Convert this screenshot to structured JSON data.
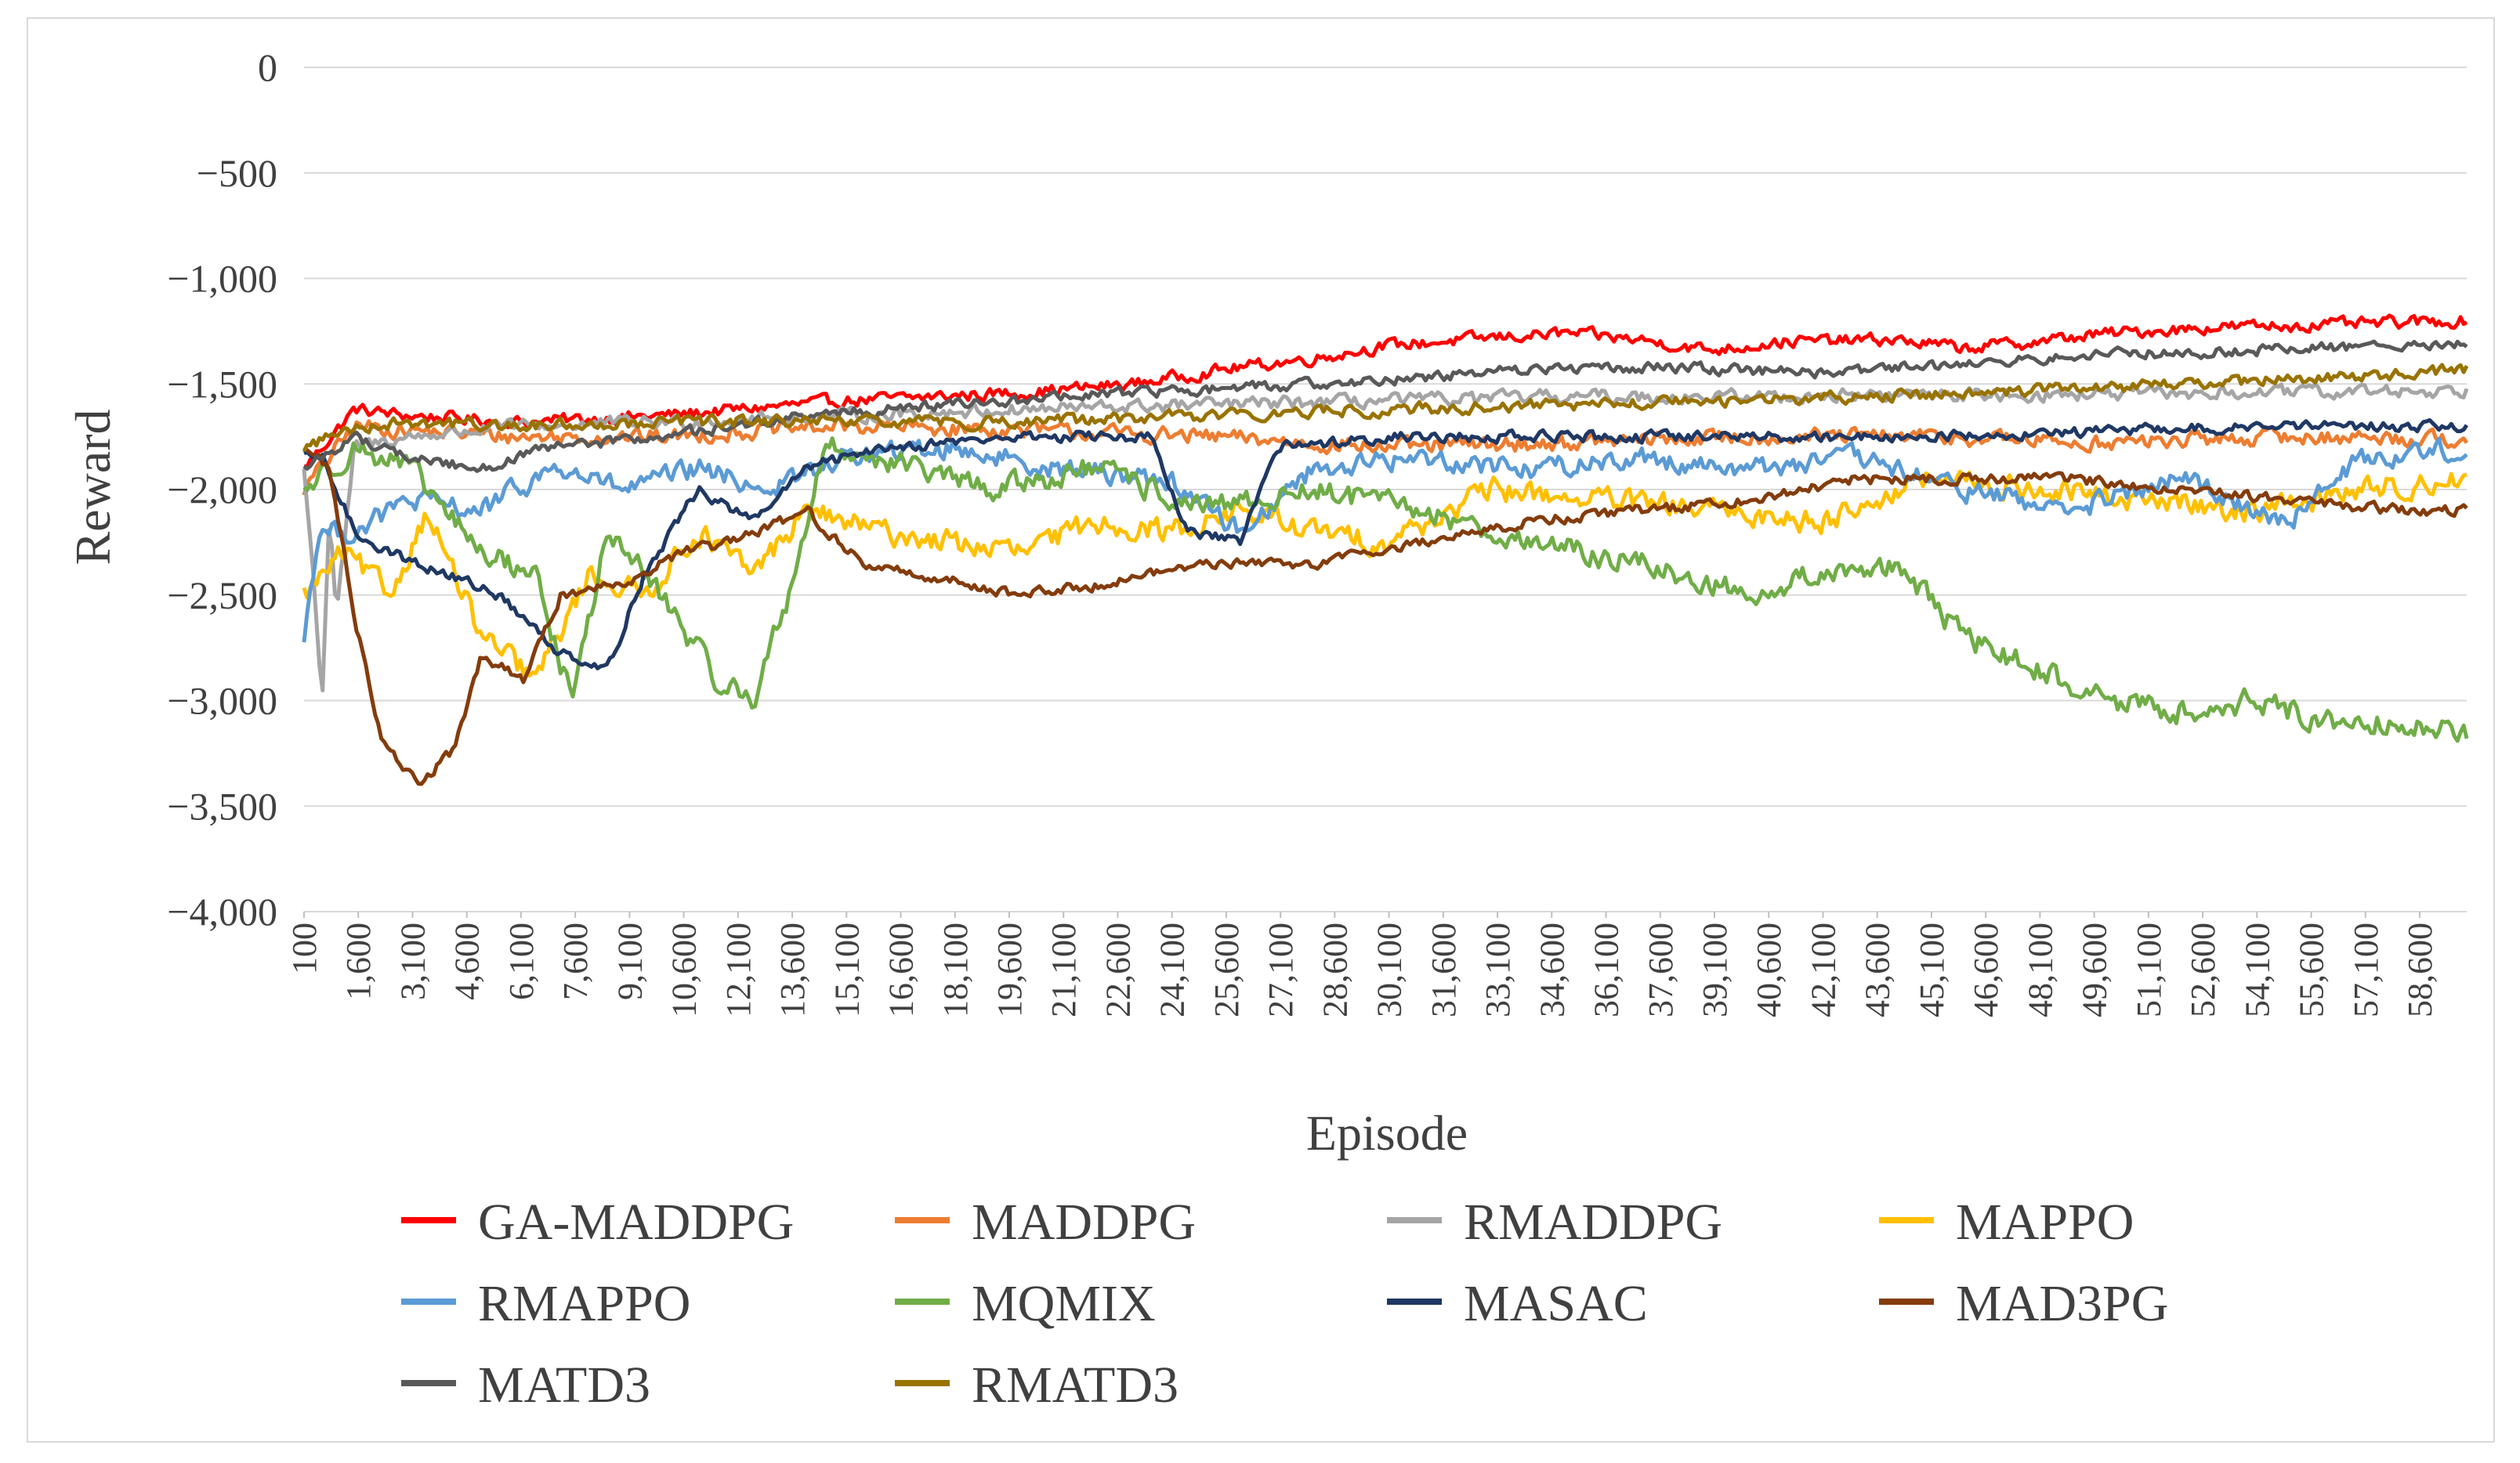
{
  "chart_data": {
    "type": "line",
    "title": "",
    "xlabel": "Episode",
    "ylabel": "Reward",
    "ylim": [
      -4000,
      0
    ],
    "y_ticks": [
      0,
      -500,
      -1000,
      -1500,
      -2000,
      -2500,
      -3000,
      -3500,
      -4000
    ],
    "y_tick_labels": [
      "0",
      "−500",
      "−1,000",
      "−1,500",
      "−2,000",
      "−2,500",
      "−3,000",
      "−3,500",
      "−4,000"
    ],
    "xlim": [
      100,
      59900
    ],
    "x_ticks": [
      100,
      1600,
      3100,
      4600,
      6100,
      7600,
      9100,
      10600,
      12100,
      13600,
      15100,
      16600,
      18100,
      19600,
      21100,
      22600,
      24100,
      25600,
      27100,
      28600,
      30100,
      31600,
      33100,
      34600,
      36100,
      37600,
      39100,
      40600,
      42100,
      43600,
      45100,
      46600,
      48100,
      49600,
      51100,
      52600,
      54100,
      55600,
      57100,
      58600
    ],
    "x_tick_labels": [
      "100",
      "1,600",
      "3,100",
      "4,600",
      "6,100",
      "7,600",
      "9,100",
      "10,600",
      "12,100",
      "13,600",
      "15,100",
      "16,600",
      "18,100",
      "19,600",
      "21,100",
      "22,600",
      "24,100",
      "25,600",
      "27,100",
      "28,600",
      "30,100",
      "31,600",
      "33,100",
      "34,600",
      "36,100",
      "37,600",
      "39,100",
      "40,600",
      "42,100",
      "43,600",
      "45,100",
      "46,600",
      "48,100",
      "49,600",
      "51,100",
      "52,600",
      "54,100",
      "55,600",
      "57,100",
      "58,600"
    ],
    "grid": true,
    "legend_position": "bottom",
    "series": [
      {
        "name": "GA-MADDPG",
        "color": "#ff0000",
        "noise": 45,
        "x": [
          100,
          1500,
          3000,
          6000,
          10000,
          15000,
          20000,
          23000,
          26000,
          28000,
          30000,
          33000,
          35000,
          37000,
          39000,
          41000,
          44000,
          46000,
          48000,
          50000,
          53000,
          56000,
          59900
        ],
        "values": [
          -1900,
          -1620,
          -1650,
          -1680,
          -1650,
          -1580,
          -1540,
          -1500,
          -1420,
          -1380,
          -1320,
          -1280,
          -1260,
          -1290,
          -1340,
          -1300,
          -1290,
          -1330,
          -1300,
          -1260,
          -1230,
          -1220,
          -1200
        ]
      },
      {
        "name": "MADDPG",
        "color": "#ed7d31",
        "noise": 60,
        "x": [
          100,
          1500,
          3000,
          6000,
          10000,
          15000,
          20000,
          25000,
          30000,
          35000,
          40000,
          45000,
          50000,
          55000,
          59900
        ],
        "values": [
          -2000,
          -1700,
          -1720,
          -1750,
          -1750,
          -1700,
          -1720,
          -1750,
          -1800,
          -1780,
          -1750,
          -1750,
          -1780,
          -1750,
          -1760
        ]
      },
      {
        "name": "RMADDPG",
        "color": "#a5a5a5",
        "noise": 50,
        "x": [
          100,
          400,
          600,
          800,
          1000,
          1500,
          3000,
          6000,
          10000,
          15000,
          20000,
          25000,
          30000,
          35000,
          40000,
          45000,
          50000,
          55000,
          59900
        ],
        "values": [
          -1900,
          -2500,
          -3000,
          -2100,
          -2600,
          -1800,
          -1750,
          -1700,
          -1680,
          -1650,
          -1620,
          -1600,
          -1580,
          -1560,
          -1560,
          -1550,
          -1550,
          -1540,
          -1530
        ]
      },
      {
        "name": "MAPPO",
        "color": "#ffc000",
        "noise": 90,
        "x": [
          100,
          1200,
          2500,
          3500,
          5000,
          6500,
          8000,
          9500,
          11000,
          12500,
          14000,
          16000,
          18000,
          20000,
          22000,
          24000,
          26000,
          28000,
          30000,
          33000,
          36000,
          39000,
          42000,
          45000,
          48000,
          51000,
          54000,
          57000,
          59900
        ],
        "values": [
          -2500,
          -2300,
          -2500,
          -2100,
          -2700,
          -2900,
          -2400,
          -2500,
          -2200,
          -2400,
          -2100,
          -2200,
          -2250,
          -2300,
          -2150,
          -2200,
          -2100,
          -2200,
          -2250,
          -2000,
          -2050,
          -2100,
          -2150,
          -1950,
          -2000,
          -2050,
          -2100,
          -2000,
          -1950
        ]
      },
      {
        "name": "RMAPPO",
        "color": "#5b9bd5",
        "noise": 80,
        "x": [
          100,
          500,
          1500,
          3000,
          5000,
          7000,
          9000,
          11000,
          13000,
          15000,
          18000,
          21000,
          24000,
          26000,
          28000,
          31000,
          34000,
          37000,
          40000,
          43000,
          46000,
          49000,
          52000,
          55000,
          57000,
          59900
        ],
        "values": [
          -2700,
          -2200,
          -2200,
          -2050,
          -2100,
          -1900,
          -2000,
          -1900,
          -2000,
          -1850,
          -1800,
          -1900,
          -1950,
          -2200,
          -1900,
          -1850,
          -1900,
          -1850,
          -1900,
          -1850,
          -2000,
          -2100,
          -1950,
          -2150,
          -1850,
          -1800
        ]
      },
      {
        "name": "MQMIX",
        "color": "#70ad47",
        "noise": 90,
        "x": [
          100,
          1500,
          3000,
          5000,
          6500,
          7500,
          8500,
          10000,
          11500,
          12500,
          13500,
          14500,
          16000,
          19000,
          22000,
          25000,
          28000,
          31000,
          34000,
          37000,
          40000,
          42000,
          44000,
          46000,
          48000,
          50000,
          52000,
          54000,
          56000,
          58000,
          59900
        ],
        "values": [
          -2000,
          -1800,
          -1900,
          -2300,
          -2400,
          -3000,
          -2200,
          -2500,
          -2900,
          -3000,
          -2500,
          -1800,
          -1850,
          -2000,
          -1900,
          -2100,
          -2000,
          -2100,
          -2250,
          -2350,
          -2500,
          -2400,
          -2350,
          -2700,
          -2850,
          -3000,
          -3050,
          -3000,
          -3100,
          -3100,
          -3150
        ]
      },
      {
        "name": "MASAC",
        "color": "#1f3864",
        "noise": 40,
        "x": [
          100,
          600,
          1500,
          2500,
          4000,
          5500,
          7000,
          8500,
          9500,
          11000,
          12500,
          14000,
          16000,
          20000,
          23500,
          24500,
          26000,
          27000,
          30000,
          35000,
          40000,
          45000,
          50000,
          55000,
          59900
        ],
        "values": [
          -1850,
          -1850,
          -2200,
          -2300,
          -2400,
          -2500,
          -2750,
          -2850,
          -2400,
          -2000,
          -2150,
          -1900,
          -1800,
          -1750,
          -1750,
          -2200,
          -2250,
          -1800,
          -1750,
          -1750,
          -1750,
          -1750,
          -1720,
          -1700,
          -1700
        ]
      },
      {
        "name": "MAD3PG",
        "color": "#843c0c",
        "noise": 40,
        "x": [
          100,
          800,
          1500,
          2200,
          3200,
          4200,
          5000,
          6200,
          7200,
          8500,
          9500,
          10500,
          12000,
          14000,
          15500,
          17000,
          20000,
          22000,
          25000,
          28000,
          31000,
          34000,
          37000,
          40000,
          43000,
          46000,
          49000,
          52000,
          55000,
          58000,
          59900
        ],
        "values": [
          -1800,
          -1900,
          -2600,
          -3150,
          -3400,
          -3250,
          -2800,
          -2900,
          -2500,
          -2450,
          -2400,
          -2300,
          -2250,
          -2100,
          -2350,
          -2400,
          -2500,
          -2450,
          -2350,
          -2350,
          -2250,
          -2150,
          -2100,
          -2050,
          -1950,
          -1950,
          -1950,
          -2000,
          -2050,
          -2100,
          -2100
        ]
      },
      {
        "name": "MATD3",
        "color": "#595959",
        "noise": 40,
        "x": [
          100,
          1500,
          3000,
          5000,
          7000,
          10000,
          14000,
          18000,
          22000,
          26000,
          30000,
          34000,
          38000,
          42000,
          46000,
          50000,
          54000,
          58000,
          59900
        ],
        "values": [
          -1900,
          -1750,
          -1850,
          -1900,
          -1800,
          -1750,
          -1650,
          -1600,
          -1550,
          -1520,
          -1480,
          -1430,
          -1420,
          -1450,
          -1400,
          -1360,
          -1340,
          -1320,
          -1310
        ]
      },
      {
        "name": "RMATD3",
        "color": "#997300",
        "noise": 45,
        "x": [
          100,
          1500,
          3000,
          6000,
          10000,
          15000,
          20000,
          25000,
          30000,
          35000,
          40000,
          45000,
          50000,
          55000,
          59900
        ],
        "values": [
          -1800,
          -1700,
          -1680,
          -1700,
          -1680,
          -1680,
          -1680,
          -1650,
          -1620,
          -1600,
          -1580,
          -1550,
          -1520,
          -1480,
          -1430
        ]
      }
    ]
  }
}
